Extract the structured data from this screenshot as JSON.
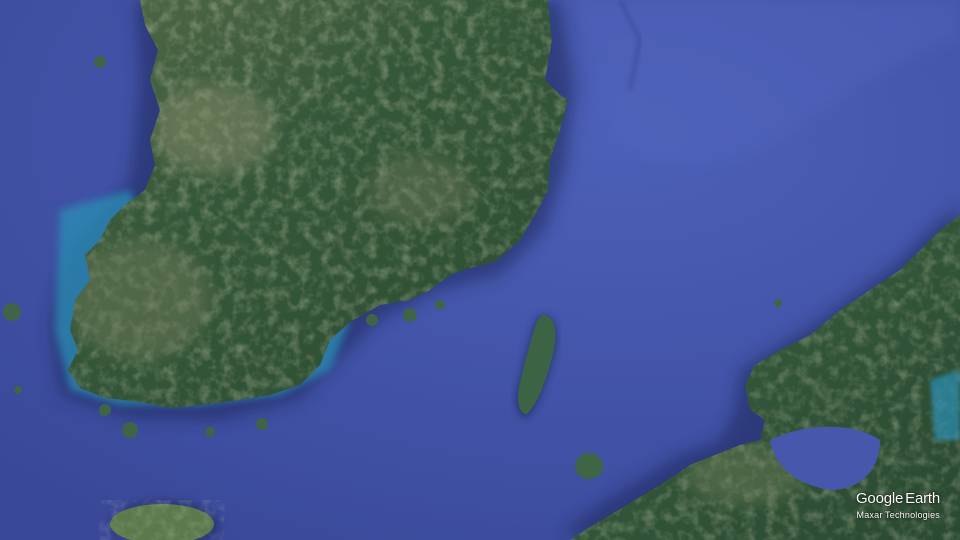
{
  "map": {
    "style": "satellite",
    "colors": {
      "ocean": "#3f4fa0",
      "ocean_light": "#4b5fb6",
      "shallow": "#2a8fb5",
      "land_dark": "#2f5232",
      "land_light": "#8a8f6a",
      "shadow": "#1c2558"
    }
  },
  "attribution": {
    "brand_google": "Google",
    "brand_earth": "Earth",
    "provider": "Maxar Technologies"
  }
}
